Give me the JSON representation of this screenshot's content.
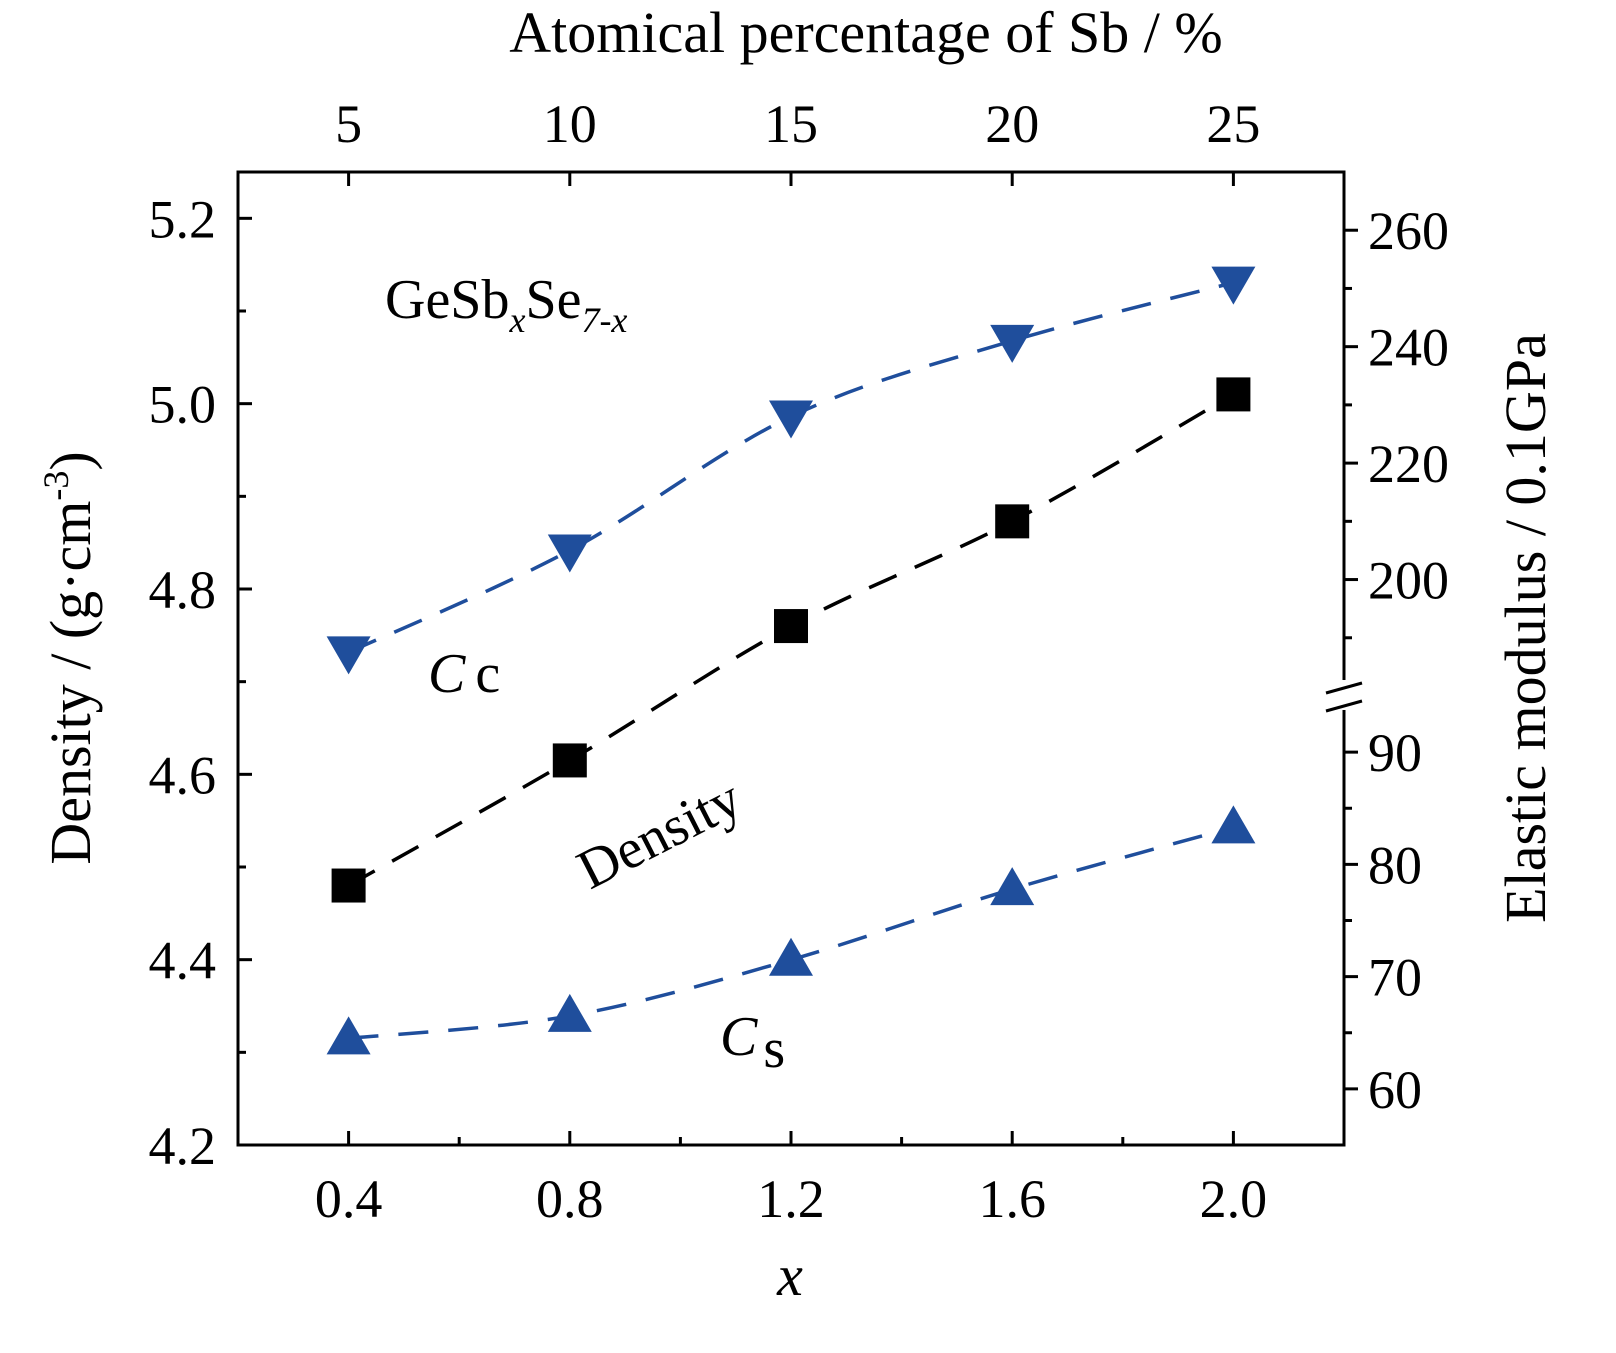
{
  "chart_data": {
    "type": "scatter",
    "bottom_axis": {
      "label": "x",
      "range": [
        0.2,
        2.2
      ],
      "ticks": [
        0.4,
        0.8,
        1.2,
        1.6,
        2.0
      ],
      "tick_labels": [
        "0.4",
        "0.8",
        "1.2",
        "1.6",
        "2.0"
      ]
    },
    "top_axis": {
      "label": "Atomical percentage of Sb / %",
      "ticks": [
        5,
        10,
        15,
        20,
        25
      ],
      "tick_labels": [
        "5",
        "10",
        "15",
        "20",
        "25"
      ]
    },
    "left_axis": {
      "label": "Density / (g·cm⁻³)",
      "label_main": "Density / (g·cm",
      "label_sup": "-3",
      "label_end": ")",
      "range": [
        4.2,
        5.25
      ],
      "ticks": [
        4.2,
        4.4,
        4.6,
        4.8,
        5.0,
        5.2
      ],
      "tick_labels": [
        "4.2",
        "4.4",
        "4.6",
        "4.8",
        "5.0",
        "5.2"
      ]
    },
    "right_axis": {
      "label": "Elastic modulus / 0.1GPa",
      "color": "#1f4e9c",
      "broken": true,
      "lower_segment": {
        "range": [
          55,
          95
        ],
        "ticks": [
          60,
          70,
          80,
          90
        ],
        "tick_labels": [
          "60",
          "70",
          "80",
          "90"
        ]
      },
      "upper_segment": {
        "range": [
          180,
          270
        ],
        "ticks": [
          200,
          220,
          240,
          260
        ],
        "tick_labels": [
          "200",
          "220",
          "240",
          "260"
        ]
      }
    },
    "series": [
      {
        "name": "Cc",
        "axis": "right",
        "marker": "triangle-down",
        "color": "#1f4e9c",
        "line": "dashed",
        "x": [
          0.4,
          0.8,
          1.2,
          1.6,
          2.0
        ],
        "y": [
          187.5,
          205,
          228,
          241,
          251
        ]
      },
      {
        "name": "Density",
        "axis": "left",
        "marker": "square",
        "color": "#000000",
        "line": "dashed",
        "x": [
          0.4,
          0.8,
          1.2,
          1.6,
          2.0
        ],
        "y": [
          4.48,
          4.615,
          4.76,
          4.873,
          5.01
        ]
      },
      {
        "name": "Cs",
        "axis": "right",
        "marker": "triangle-up",
        "color": "#1f4e9c",
        "line": "dashed",
        "x": [
          0.4,
          0.8,
          1.2,
          1.6,
          2.0
        ],
        "y": [
          64.5,
          66.5,
          71.5,
          77.8,
          83.3
        ]
      }
    ],
    "annotations": {
      "formula_base": "GeSb",
      "formula_sub1": "x",
      "formula_mid": "Se",
      "formula_sub2": "7-x",
      "cc_main": "C",
      "cc_sub": "c",
      "cs_main": "C",
      "cs_sub": "s",
      "density_label": "Density"
    },
    "grid": false,
    "legend": "none"
  }
}
